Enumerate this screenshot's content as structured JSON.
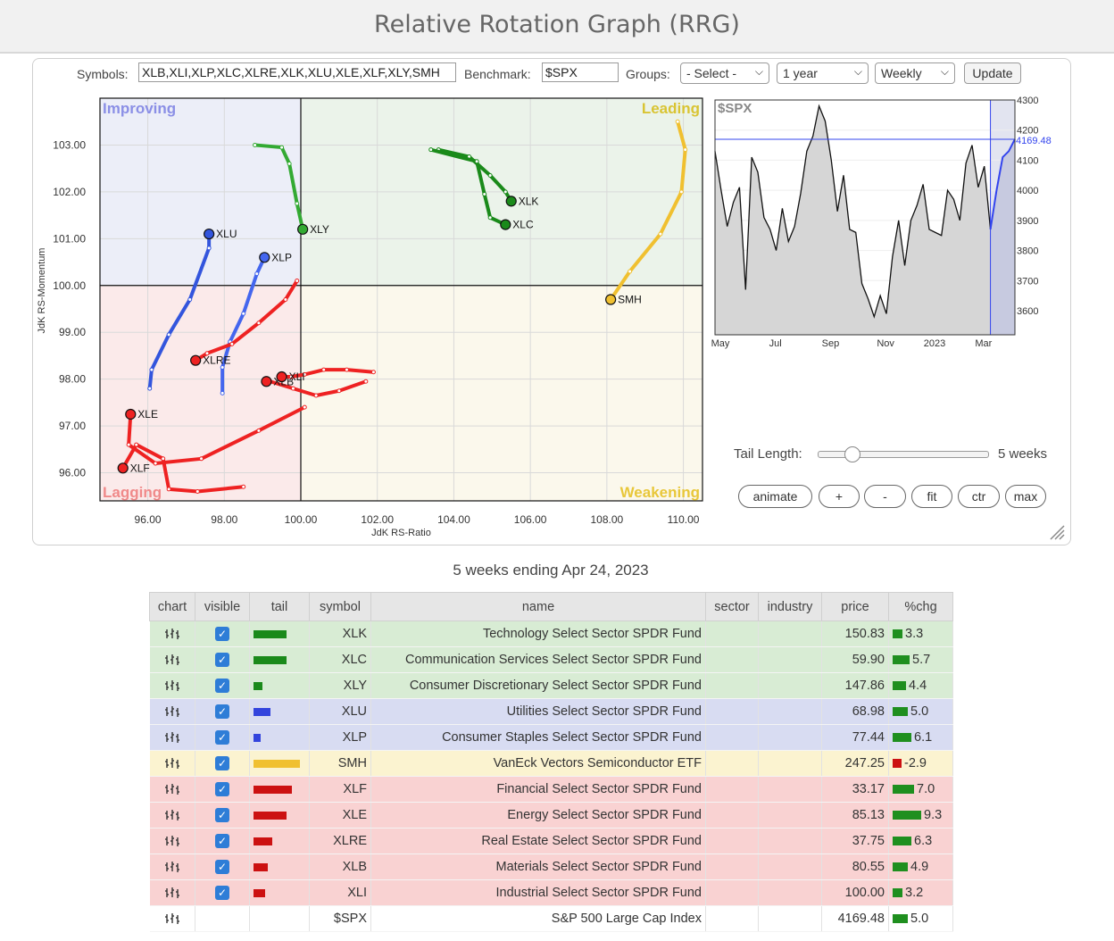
{
  "page": {
    "title": "Relative Rotation Graph (RRG)"
  },
  "controls": {
    "symbols_label": "Symbols:",
    "symbols_value": "XLB,XLI,XLP,XLC,XLRE,XLK,XLU,XLE,XLF,XLY,SMH",
    "benchmark_label": "Benchmark:",
    "benchmark_value": "$SPX",
    "groups_label": "Groups:",
    "groups_selected": "- Select -",
    "period_selected": "1 year",
    "freq_selected": "Weekly",
    "update_label": "Update"
  },
  "tail": {
    "label": "Tail Length:",
    "value": 5,
    "max": 26,
    "value_label": "5 weeks"
  },
  "buttons": {
    "animate": "animate",
    "plus": "+",
    "minus": "-",
    "fit": "fit",
    "ctr": "ctr",
    "max": "max"
  },
  "caption": "5 weeks ending Apr 24, 2023",
  "chart_data": [
    {
      "type": "scatter",
      "name": "rrg",
      "xlabel": "JdK RS-Ratio",
      "ylabel": "JdK RS-Momentum",
      "xlim": [
        94.75,
        110.5
      ],
      "ylim": [
        95.4,
        104.0
      ],
      "center": [
        100,
        100
      ],
      "xticks": [
        96,
        98,
        100,
        102,
        104,
        106,
        108,
        110
      ],
      "xtick_labels": [
        "96.00",
        "98.00",
        "100.00",
        "102.00",
        "104.00",
        "106.00",
        "108.00",
        "110.00"
      ],
      "yticks": [
        96,
        97,
        98,
        99,
        100,
        101,
        102,
        103
      ],
      "ytick_labels": [
        "96.00",
        "97.00",
        "98.00",
        "99.00",
        "100.00",
        "101.00",
        "102.00",
        "103.00"
      ],
      "grid": true,
      "quadrants": {
        "improving": {
          "label": "Improving",
          "color": "#eceef8",
          "text_color": "#8b8fe6"
        },
        "leading": {
          "label": "Leading",
          "color": "#ebf3ea",
          "text_color": "#d9c433"
        },
        "weakening": {
          "label": "Weakening",
          "color": "#fbf8ec",
          "text_color": "#e8c73a"
        },
        "lagging": {
          "label": "Lagging",
          "color": "#fbeaea",
          "text_color": "#f08a8a"
        }
      },
      "series": [
        {
          "name": "XLK",
          "color": "#1a8a1a",
          "tail": [
            [
              103.6,
              102.9
            ],
            [
              104.4,
              102.75
            ],
            [
              104.95,
              102.35
            ],
            [
              105.35,
              102.0
            ],
            [
              105.5,
              101.8
            ]
          ]
        },
        {
          "name": "XLC",
          "color": "#1a8a1a",
          "tail": [
            [
              103.4,
              102.9
            ],
            [
              104.6,
              102.65
            ],
            [
              104.8,
              101.95
            ],
            [
              104.95,
              101.45
            ],
            [
              105.35,
              101.3
            ]
          ]
        },
        {
          "name": "XLY",
          "color": "#33aa33",
          "tail": [
            [
              98.8,
              103.0
            ],
            [
              99.5,
              102.95
            ],
            [
              99.7,
              102.6
            ],
            [
              99.9,
              101.75
            ],
            [
              100.05,
              101.2
            ]
          ]
        },
        {
          "name": "XLU",
          "color": "#3355dd",
          "tail": [
            [
              96.05,
              97.8
            ],
            [
              96.1,
              98.2
            ],
            [
              96.55,
              98.95
            ],
            [
              97.1,
              99.7
            ],
            [
              97.6,
              100.8
            ],
            [
              97.6,
              101.1
            ]
          ]
        },
        {
          "name": "XLP",
          "color": "#4466ee",
          "tail": [
            [
              97.95,
              97.7
            ],
            [
              97.95,
              98.25
            ],
            [
              98.15,
              98.8
            ],
            [
              98.5,
              99.4
            ],
            [
              98.85,
              100.25
            ],
            [
              99.05,
              100.6
            ]
          ]
        },
        {
          "name": "SMH",
          "color": "#f0c030",
          "tail": [
            [
              109.85,
              103.5
            ],
            [
              110.05,
              102.9
            ],
            [
              109.95,
              102.0
            ],
            [
              109.4,
              101.1
            ],
            [
              108.6,
              100.3
            ],
            [
              108.1,
              99.7
            ]
          ]
        },
        {
          "name": "XLF",
          "color": "#ee2222",
          "tail": [
            [
              98.5,
              95.7
            ],
            [
              97.3,
              95.6
            ],
            [
              96.55,
              95.65
            ],
            [
              96.4,
              96.3
            ],
            [
              95.7,
              96.6
            ],
            [
              95.35,
              96.1
            ]
          ]
        },
        {
          "name": "XLE",
          "color": "#ee2222",
          "tail": [
            [
              100.1,
              97.4
            ],
            [
              98.9,
              96.9
            ],
            [
              97.4,
              96.3
            ],
            [
              96.2,
              96.2
            ],
            [
              95.5,
              96.6
            ],
            [
              95.55,
              97.25
            ]
          ]
        },
        {
          "name": "XLRE",
          "color": "#ee2222",
          "tail": [
            [
              99.9,
              100.1
            ],
            [
              99.6,
              99.7
            ],
            [
              98.9,
              99.2
            ],
            [
              98.2,
              98.75
            ],
            [
              97.55,
              98.55
            ],
            [
              97.25,
              98.4
            ]
          ]
        },
        {
          "name": "XLB",
          "color": "#ee2222",
          "tail": [
            [
              101.7,
              97.95
            ],
            [
              101.0,
              97.75
            ],
            [
              100.4,
              97.65
            ],
            [
              99.8,
              97.8
            ],
            [
              99.2,
              97.95
            ],
            [
              99.1,
              97.95
            ]
          ]
        },
        {
          "name": "XLI",
          "color": "#ee2222",
          "tail": [
            [
              101.9,
              98.15
            ],
            [
              101.2,
              98.2
            ],
            [
              100.6,
              98.2
            ],
            [
              100.1,
              98.1
            ],
            [
              99.75,
              98.05
            ],
            [
              99.5,
              98.05
            ]
          ]
        }
      ]
    },
    {
      "type": "area",
      "name": "benchmark",
      "title": "$SPX",
      "ylim": [
        3520,
        4300
      ],
      "yticks": [
        3600,
        3700,
        3800,
        3900,
        4000,
        4100,
        4200,
        4300
      ],
      "ytick_labels": [
        "3600",
        "3700",
        "3800",
        "3900",
        "4000",
        "4100",
        "4200",
        "4300"
      ],
      "xtick_labels": [
        "May",
        "Jul",
        "Sep",
        "Nov",
        "2023",
        "Mar"
      ],
      "xtick_weeks": [
        0,
        9,
        18,
        27,
        35,
        43
      ],
      "current_value": 4169.48,
      "current_label": "4169.48",
      "highlight_from_week": 45,
      "values": [
        4130,
        4000,
        3880,
        3960,
        4010,
        3670,
        4110,
        4060,
        3910,
        3870,
        3800,
        3940,
        3830,
        3880,
        3990,
        4130,
        4180,
        4280,
        4230,
        4100,
        3930,
        4050,
        3870,
        3860,
        3690,
        3640,
        3580,
        3650,
        3590,
        3780,
        3900,
        3750,
        3900,
        3950,
        4020,
        3870,
        3860,
        3850,
        4000,
        3970,
        3900,
        4090,
        4150,
        4010,
        4080,
        3870,
        4000,
        4110,
        4130,
        4170
      ]
    }
  ],
  "table": {
    "columns": [
      "chart",
      "visible",
      "tail",
      "symbol",
      "name",
      "sector",
      "industry",
      "price",
      "%chg"
    ],
    "rows": [
      {
        "symbol": "XLK",
        "name": "Technology Select Sector SPDR Fund",
        "price": "150.83",
        "chg": 3.3,
        "chg_label": "3.3",
        "tail_weeks": 5,
        "tail_color": "#1a8a1a",
        "visible": true,
        "bg": "#d8ecd4"
      },
      {
        "symbol": "XLC",
        "name": "Communication Services Select Sector SPDR Fund",
        "price": "59.90",
        "chg": 5.7,
        "chg_label": "5.7",
        "tail_weeks": 5,
        "tail_color": "#1a8a1a",
        "visible": true,
        "bg": "#d8ecd4"
      },
      {
        "symbol": "XLY",
        "name": "Consumer Discretionary Select Sector SPDR Fund",
        "price": "147.86",
        "chg": 4.4,
        "chg_label": "4.4",
        "tail_weeks": 1.3,
        "tail_color": "#1a8a1a",
        "visible": true,
        "bg": "#d8ecd4"
      },
      {
        "symbol": "XLU",
        "name": "Utilities Select Sector SPDR Fund",
        "price": "68.98",
        "chg": 5.0,
        "chg_label": "5.0",
        "tail_weeks": 2.5,
        "tail_color": "#3344dd",
        "visible": true,
        "bg": "#d8dcf2"
      },
      {
        "symbol": "XLP",
        "name": "Consumer Staples Select Sector SPDR Fund",
        "price": "77.44",
        "chg": 6.1,
        "chg_label": "6.1",
        "tail_weeks": 1.1,
        "tail_color": "#3344dd",
        "visible": true,
        "bg": "#d8dcf2"
      },
      {
        "symbol": "SMH",
        "name": "VanEck Vectors Semiconductor ETF",
        "price": "247.25",
        "chg": -2.9,
        "chg_label": "-2.9",
        "tail_weeks": 7,
        "tail_color": "#f0c030",
        "visible": true,
        "bg": "#fbf3d0"
      },
      {
        "symbol": "XLF",
        "name": "Financial Select Sector SPDR Fund",
        "price": "33.17",
        "chg": 7.0,
        "chg_label": "7.0",
        "tail_weeks": 5.8,
        "tail_color": "#cc1111",
        "visible": true,
        "bg": "#f9d2d2"
      },
      {
        "symbol": "XLE",
        "name": "Energy Select Sector SPDR Fund",
        "price": "85.13",
        "chg": 9.3,
        "chg_label": "9.3",
        "tail_weeks": 5,
        "tail_color": "#cc1111",
        "visible": true,
        "bg": "#f9d2d2"
      },
      {
        "symbol": "XLRE",
        "name": "Real Estate Select Sector SPDR Fund",
        "price": "37.75",
        "chg": 6.3,
        "chg_label": "6.3",
        "tail_weeks": 2.9,
        "tail_color": "#cc1111",
        "visible": true,
        "bg": "#f9d2d2"
      },
      {
        "symbol": "XLB",
        "name": "Materials Select Sector SPDR Fund",
        "price": "80.55",
        "chg": 4.9,
        "chg_label": "4.9",
        "tail_weeks": 2.1,
        "tail_color": "#cc1111",
        "visible": true,
        "bg": "#f9d2d2"
      },
      {
        "symbol": "XLI",
        "name": "Industrial Select Sector SPDR Fund",
        "price": "100.00",
        "chg": 3.2,
        "chg_label": "3.2",
        "tail_weeks": 1.8,
        "tail_color": "#cc1111",
        "visible": true,
        "bg": "#f9d2d2"
      },
      {
        "symbol": "$SPX",
        "name": "S&P 500 Large Cap Index",
        "price": "4169.48",
        "chg": 5.0,
        "chg_label": "5.0",
        "tail_weeks": 0,
        "tail_color": "",
        "visible": false,
        "bg": "#ffffff"
      }
    ]
  }
}
